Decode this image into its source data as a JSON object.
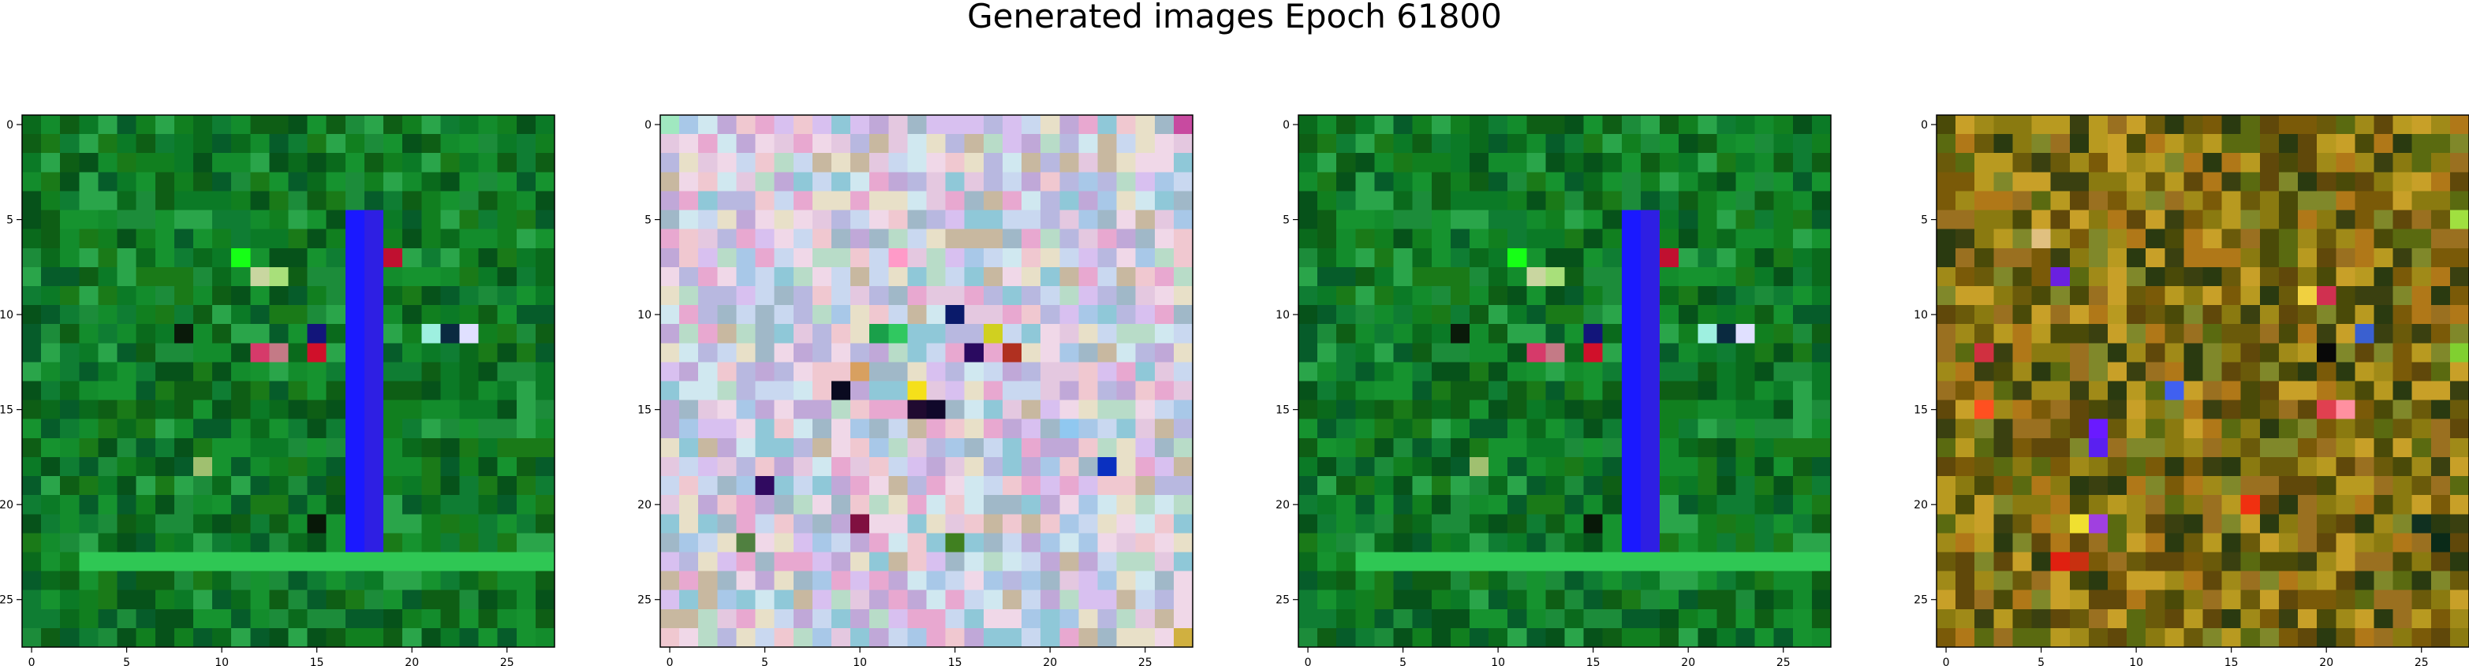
{
  "figure": {
    "title": "Generated images Epoch 61800"
  },
  "chart_data": [
    {
      "type": "heatmap",
      "grid_size": 28,
      "x_ticks": [
        0,
        5,
        10,
        15,
        20,
        25
      ],
      "y_ticks": [
        0,
        5,
        10,
        15,
        20,
        25
      ],
      "palette": [
        "#0b7a26",
        "#117f1f",
        "#0a6a1c",
        "#138c2c",
        "#0e5e15",
        "#1c8c3a",
        "#06521a",
        "#16932f",
        "#2aa54a",
        "#0f7d33",
        "#065c2a",
        "#1a7a18"
      ],
      "seed": 11,
      "features": [
        {
          "kind": "col",
          "x": 17,
          "y0": 5,
          "y1": 22,
          "color": "#1a19ff"
        },
        {
          "kind": "col",
          "x": 18,
          "y0": 5,
          "y1": 22,
          "color": "#2e1fe3"
        },
        {
          "kind": "row",
          "y": 23,
          "x0": 3,
          "x1": 27,
          "color": "#2fc754"
        },
        {
          "kind": "pt",
          "x": 12,
          "y": 12,
          "color": "#d63a6a"
        },
        {
          "kind": "pt",
          "x": 13,
          "y": 12,
          "color": "#c47a86"
        },
        {
          "kind": "pt",
          "x": 15,
          "y": 12,
          "color": "#d0102a"
        },
        {
          "kind": "pt",
          "x": 12,
          "y": 8,
          "color": "#c9d6a0"
        },
        {
          "kind": "pt",
          "x": 13,
          "y": 8,
          "color": "#a8e07a"
        },
        {
          "kind": "pt",
          "x": 11,
          "y": 7,
          "color": "#16ff16"
        },
        {
          "kind": "pt",
          "x": 19,
          "y": 7,
          "color": "#c01030"
        },
        {
          "kind": "pt",
          "x": 21,
          "y": 11,
          "color": "#9ef0e0"
        },
        {
          "kind": "pt",
          "x": 22,
          "y": 11,
          "color": "#0a2a40"
        },
        {
          "kind": "pt",
          "x": 23,
          "y": 11,
          "color": "#e0e0ff"
        },
        {
          "kind": "pt",
          "x": 8,
          "y": 11,
          "color": "#0a1a0a"
        },
        {
          "kind": "pt",
          "x": 15,
          "y": 11,
          "color": "#12157a"
        },
        {
          "kind": "pt",
          "x": 15,
          "y": 21,
          "color": "#081808"
        },
        {
          "kind": "pt",
          "x": 9,
          "y": 18,
          "color": "#a0c070"
        }
      ]
    },
    {
      "type": "heatmap",
      "grid_size": 28,
      "x_ticks": [
        0,
        5,
        10,
        15,
        20,
        25
      ],
      "y_ticks": [
        0,
        5,
        10,
        15,
        20,
        25
      ],
      "palette": [
        "#c9d8f0",
        "#e4c8e0",
        "#b8dcc8",
        "#d8c0f0",
        "#f0d8e8",
        "#a8c8e8",
        "#e8e0c8",
        "#c0a8d8",
        "#d0e8f0",
        "#b8b8e0",
        "#f0c8d0",
        "#a0b8c8",
        "#e8a8d0",
        "#8fc8d8",
        "#c8b8a0"
      ],
      "seed": 23,
      "features": [
        {
          "kind": "pt",
          "x": 13,
          "y": 14,
          "color": "#f5e01a"
        },
        {
          "kind": "pt",
          "x": 9,
          "y": 14,
          "color": "#0a0a20"
        },
        {
          "kind": "pt",
          "x": 15,
          "y": 10,
          "color": "#0a1a6a"
        },
        {
          "kind": "pt",
          "x": 17,
          "y": 11,
          "color": "#d0d020"
        },
        {
          "kind": "pt",
          "x": 16,
          "y": 12,
          "color": "#2a0a60"
        },
        {
          "kind": "pt",
          "x": 13,
          "y": 15,
          "color": "#200a30"
        },
        {
          "kind": "pt",
          "x": 14,
          "y": 15,
          "color": "#10082a"
        },
        {
          "kind": "pt",
          "x": 11,
          "y": 11,
          "color": "#1aa04a"
        },
        {
          "kind": "pt",
          "x": 12,
          "y": 11,
          "color": "#30c860"
        },
        {
          "kind": "pt",
          "x": 10,
          "y": 13,
          "color": "#d8a060"
        },
        {
          "kind": "pt",
          "x": 12,
          "y": 7,
          "color": "#ff9ac8"
        },
        {
          "kind": "pt",
          "x": 18,
          "y": 12,
          "color": "#b03020"
        },
        {
          "kind": "pt",
          "x": 23,
          "y": 18,
          "color": "#0a30c0"
        },
        {
          "kind": "pt",
          "x": 27,
          "y": 27,
          "color": "#d0b040"
        },
        {
          "kind": "pt",
          "x": 5,
          "y": 19,
          "color": "#300a60"
        },
        {
          "kind": "pt",
          "x": 4,
          "y": 22,
          "color": "#508040"
        },
        {
          "kind": "pt",
          "x": 15,
          "y": 22,
          "color": "#408020"
        },
        {
          "kind": "pt",
          "x": 10,
          "y": 21,
          "color": "#801040"
        },
        {
          "kind": "pt",
          "x": 21,
          "y": 16,
          "color": "#90c8f0"
        },
        {
          "kind": "pt",
          "x": 27,
          "y": 0,
          "color": "#c84aa0"
        },
        {
          "kind": "pt",
          "x": 0,
          "y": 0,
          "color": "#a0e8c0"
        }
      ]
    },
    {
      "type": "heatmap",
      "grid_size": 28,
      "x_ticks": [
        0,
        5,
        10,
        15,
        20,
        25
      ],
      "y_ticks": [
        0,
        5,
        10,
        15,
        20,
        25
      ],
      "palette": [
        "#0b7a26",
        "#117f1f",
        "#0a6a1c",
        "#138c2c",
        "#0e5e15",
        "#1c8c3a",
        "#06521a",
        "#16932f",
        "#2aa54a",
        "#0f7d33",
        "#065c2a",
        "#1a7a18"
      ],
      "seed": 11,
      "features": [
        {
          "kind": "col",
          "x": 17,
          "y0": 5,
          "y1": 22,
          "color": "#1a19ff"
        },
        {
          "kind": "col",
          "x": 18,
          "y0": 5,
          "y1": 22,
          "color": "#2e1fe3"
        },
        {
          "kind": "row",
          "y": 23,
          "x0": 3,
          "x1": 27,
          "color": "#2fc754"
        },
        {
          "kind": "pt",
          "x": 12,
          "y": 12,
          "color": "#d63a6a"
        },
        {
          "kind": "pt",
          "x": 13,
          "y": 12,
          "color": "#c47a86"
        },
        {
          "kind": "pt",
          "x": 15,
          "y": 12,
          "color": "#d0102a"
        },
        {
          "kind": "pt",
          "x": 12,
          "y": 8,
          "color": "#c9d6a0"
        },
        {
          "kind": "pt",
          "x": 13,
          "y": 8,
          "color": "#a8e07a"
        },
        {
          "kind": "pt",
          "x": 11,
          "y": 7,
          "color": "#16ff16"
        },
        {
          "kind": "pt",
          "x": 19,
          "y": 7,
          "color": "#c01030"
        },
        {
          "kind": "pt",
          "x": 21,
          "y": 11,
          "color": "#9ef0e0"
        },
        {
          "kind": "pt",
          "x": 22,
          "y": 11,
          "color": "#0a2a40"
        },
        {
          "kind": "pt",
          "x": 23,
          "y": 11,
          "color": "#e0e0ff"
        },
        {
          "kind": "pt",
          "x": 8,
          "y": 11,
          "color": "#0a1a0a"
        },
        {
          "kind": "pt",
          "x": 15,
          "y": 11,
          "color": "#12157a"
        },
        {
          "kind": "pt",
          "x": 15,
          "y": 21,
          "color": "#081808"
        },
        {
          "kind": "pt",
          "x": 9,
          "y": 18,
          "color": "#a0c070"
        }
      ]
    },
    {
      "type": "heatmap",
      "grid_size": 28,
      "x_ticks": [
        0,
        5,
        10,
        15,
        20,
        25
      ],
      "y_ticks": [
        0,
        5,
        10,
        15,
        20,
        25
      ],
      "palette": [
        "#8a7a10",
        "#6a5a0a",
        "#a08a18",
        "#4a4a08",
        "#b89a20",
        "#5a6a10",
        "#7a5a08",
        "#3a4010",
        "#c8a028",
        "#9a7020",
        "#2a3a10",
        "#80882a",
        "#60480a",
        "#b07818"
      ],
      "seed": 37,
      "features": [
        {
          "kind": "pt",
          "x": 8,
          "y": 16,
          "color": "#6a1aff"
        },
        {
          "kind": "pt",
          "x": 8,
          "y": 17,
          "color": "#5a20f0"
        },
        {
          "kind": "pt",
          "x": 6,
          "y": 8,
          "color": "#6a20e0"
        },
        {
          "kind": "pt",
          "x": 5,
          "y": 6,
          "color": "#e0c080"
        },
        {
          "kind": "pt",
          "x": 19,
          "y": 9,
          "color": "#f0d040"
        },
        {
          "kind": "pt",
          "x": 20,
          "y": 9,
          "color": "#d03050"
        },
        {
          "kind": "pt",
          "x": 22,
          "y": 11,
          "color": "#3a60d0"
        },
        {
          "kind": "pt",
          "x": 21,
          "y": 15,
          "color": "#ff90a0"
        },
        {
          "kind": "pt",
          "x": 20,
          "y": 15,
          "color": "#e04050"
        },
        {
          "kind": "pt",
          "x": 2,
          "y": 12,
          "color": "#d03040"
        },
        {
          "kind": "pt",
          "x": 2,
          "y": 15,
          "color": "#ff5020"
        },
        {
          "kind": "pt",
          "x": 6,
          "y": 23,
          "color": "#e02010"
        },
        {
          "kind": "pt",
          "x": 7,
          "y": 23,
          "color": "#c83010"
        },
        {
          "kind": "pt",
          "x": 7,
          "y": 21,
          "color": "#f0e030"
        },
        {
          "kind": "pt",
          "x": 8,
          "y": 21,
          "color": "#a040e0"
        },
        {
          "kind": "pt",
          "x": 20,
          "y": 12,
          "color": "#080808"
        },
        {
          "kind": "pt",
          "x": 12,
          "y": 14,
          "color": "#4060f0"
        },
        {
          "kind": "pt",
          "x": 27,
          "y": 5,
          "color": "#a0e040"
        },
        {
          "kind": "pt",
          "x": 27,
          "y": 12,
          "color": "#80d030"
        },
        {
          "kind": "pt",
          "x": 16,
          "y": 20,
          "color": "#f03010"
        },
        {
          "kind": "pt",
          "x": 25,
          "y": 21,
          "color": "#103020"
        },
        {
          "kind": "pt",
          "x": 26,
          "y": 22,
          "color": "#0a2a18"
        }
      ]
    }
  ]
}
